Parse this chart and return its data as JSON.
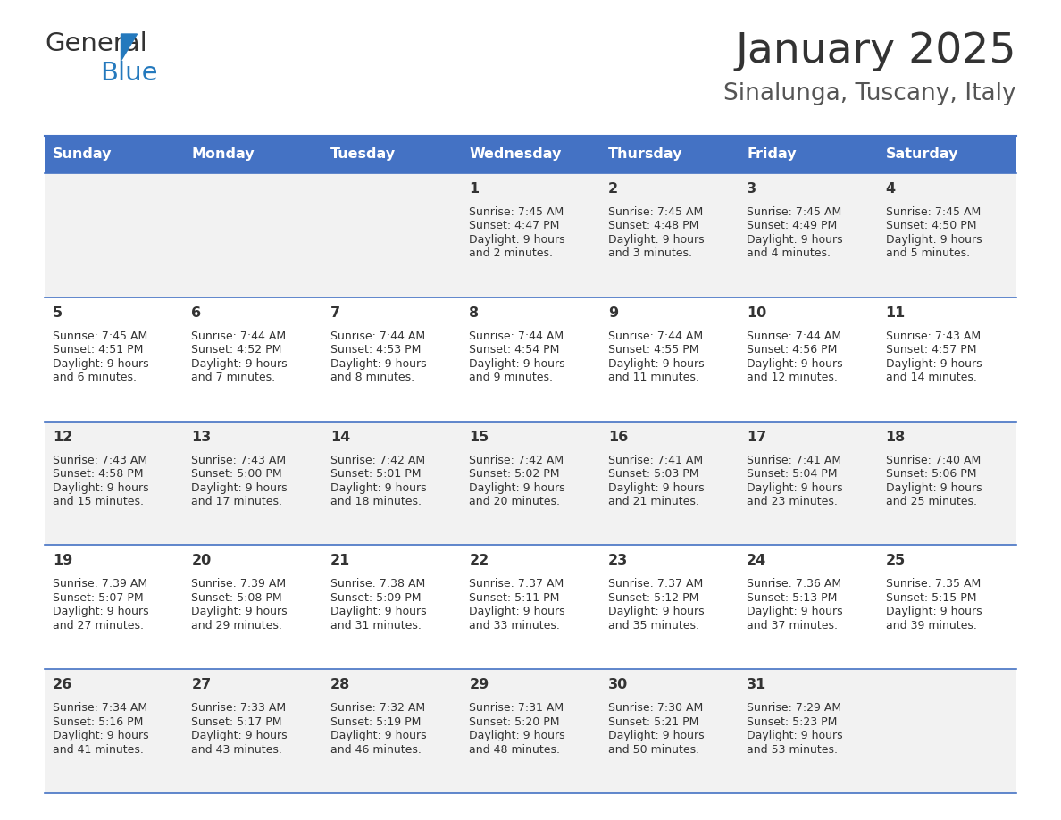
{
  "title": "January 2025",
  "subtitle": "Sinalunga, Tuscany, Italy",
  "days_of_week": [
    "Sunday",
    "Monday",
    "Tuesday",
    "Wednesday",
    "Thursday",
    "Friday",
    "Saturday"
  ],
  "header_bg": "#4472C4",
  "header_text": "#FFFFFF",
  "row_bg_light": "#F2F2F2",
  "row_bg_white": "#FFFFFF",
  "divider_color": "#4472C4",
  "text_color": "#333333",
  "title_color": "#333333",
  "subtitle_color": "#555555",
  "calendar_data": [
    [
      null,
      null,
      null,
      {
        "day": 1,
        "sunrise": "7:45 AM",
        "sunset": "4:47 PM",
        "daylight": "9 hours and 2 minutes."
      },
      {
        "day": 2,
        "sunrise": "7:45 AM",
        "sunset": "4:48 PM",
        "daylight": "9 hours and 3 minutes."
      },
      {
        "day": 3,
        "sunrise": "7:45 AM",
        "sunset": "4:49 PM",
        "daylight": "9 hours and 4 minutes."
      },
      {
        "day": 4,
        "sunrise": "7:45 AM",
        "sunset": "4:50 PM",
        "daylight": "9 hours and 5 minutes."
      }
    ],
    [
      {
        "day": 5,
        "sunrise": "7:45 AM",
        "sunset": "4:51 PM",
        "daylight": "9 hours and 6 minutes."
      },
      {
        "day": 6,
        "sunrise": "7:44 AM",
        "sunset": "4:52 PM",
        "daylight": "9 hours and 7 minutes."
      },
      {
        "day": 7,
        "sunrise": "7:44 AM",
        "sunset": "4:53 PM",
        "daylight": "9 hours and 8 minutes."
      },
      {
        "day": 8,
        "sunrise": "7:44 AM",
        "sunset": "4:54 PM",
        "daylight": "9 hours and 9 minutes."
      },
      {
        "day": 9,
        "sunrise": "7:44 AM",
        "sunset": "4:55 PM",
        "daylight": "9 hours and 11 minutes."
      },
      {
        "day": 10,
        "sunrise": "7:44 AM",
        "sunset": "4:56 PM",
        "daylight": "9 hours and 12 minutes."
      },
      {
        "day": 11,
        "sunrise": "7:43 AM",
        "sunset": "4:57 PM",
        "daylight": "9 hours and 14 minutes."
      }
    ],
    [
      {
        "day": 12,
        "sunrise": "7:43 AM",
        "sunset": "4:58 PM",
        "daylight": "9 hours and 15 minutes."
      },
      {
        "day": 13,
        "sunrise": "7:43 AM",
        "sunset": "5:00 PM",
        "daylight": "9 hours and 17 minutes."
      },
      {
        "day": 14,
        "sunrise": "7:42 AM",
        "sunset": "5:01 PM",
        "daylight": "9 hours and 18 minutes."
      },
      {
        "day": 15,
        "sunrise": "7:42 AM",
        "sunset": "5:02 PM",
        "daylight": "9 hours and 20 minutes."
      },
      {
        "day": 16,
        "sunrise": "7:41 AM",
        "sunset": "5:03 PM",
        "daylight": "9 hours and 21 minutes."
      },
      {
        "day": 17,
        "sunrise": "7:41 AM",
        "sunset": "5:04 PM",
        "daylight": "9 hours and 23 minutes."
      },
      {
        "day": 18,
        "sunrise": "7:40 AM",
        "sunset": "5:06 PM",
        "daylight": "9 hours and 25 minutes."
      }
    ],
    [
      {
        "day": 19,
        "sunrise": "7:39 AM",
        "sunset": "5:07 PM",
        "daylight": "9 hours and 27 minutes."
      },
      {
        "day": 20,
        "sunrise": "7:39 AM",
        "sunset": "5:08 PM",
        "daylight": "9 hours and 29 minutes."
      },
      {
        "day": 21,
        "sunrise": "7:38 AM",
        "sunset": "5:09 PM",
        "daylight": "9 hours and 31 minutes."
      },
      {
        "day": 22,
        "sunrise": "7:37 AM",
        "sunset": "5:11 PM",
        "daylight": "9 hours and 33 minutes."
      },
      {
        "day": 23,
        "sunrise": "7:37 AM",
        "sunset": "5:12 PM",
        "daylight": "9 hours and 35 minutes."
      },
      {
        "day": 24,
        "sunrise": "7:36 AM",
        "sunset": "5:13 PM",
        "daylight": "9 hours and 37 minutes."
      },
      {
        "day": 25,
        "sunrise": "7:35 AM",
        "sunset": "5:15 PM",
        "daylight": "9 hours and 39 minutes."
      }
    ],
    [
      {
        "day": 26,
        "sunrise": "7:34 AM",
        "sunset": "5:16 PM",
        "daylight": "9 hours and 41 minutes."
      },
      {
        "day": 27,
        "sunrise": "7:33 AM",
        "sunset": "5:17 PM",
        "daylight": "9 hours and 43 minutes."
      },
      {
        "day": 28,
        "sunrise": "7:32 AM",
        "sunset": "5:19 PM",
        "daylight": "9 hours and 46 minutes."
      },
      {
        "day": 29,
        "sunrise": "7:31 AM",
        "sunset": "5:20 PM",
        "daylight": "9 hours and 48 minutes."
      },
      {
        "day": 30,
        "sunrise": "7:30 AM",
        "sunset": "5:21 PM",
        "daylight": "9 hours and 50 minutes."
      },
      {
        "day": 31,
        "sunrise": "7:29 AM",
        "sunset": "5:23 PM",
        "daylight": "9 hours and 53 minutes."
      },
      null
    ]
  ],
  "logo_text1": "General",
  "logo_text2": "Blue",
  "logo_color1": "#333333",
  "logo_color2": "#2479BD"
}
